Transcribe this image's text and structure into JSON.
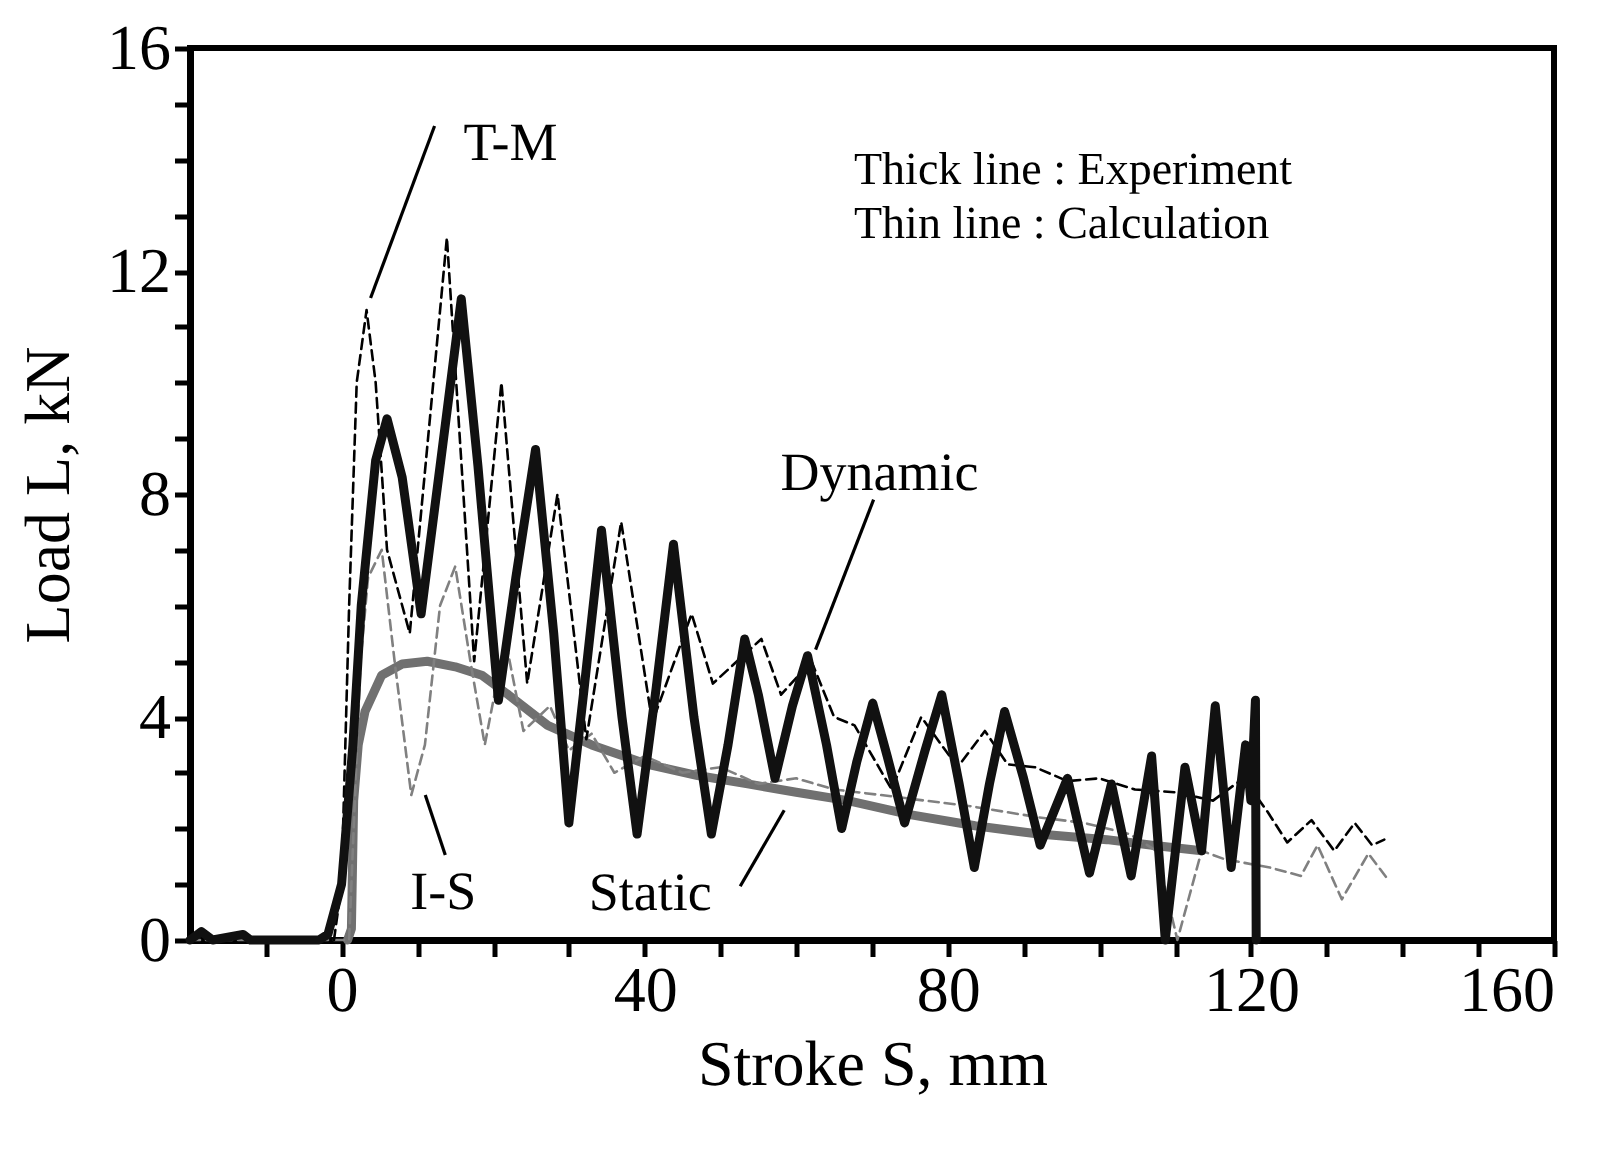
{
  "chart_data": {
    "type": "line",
    "xlabel": "Stroke S, mm",
    "ylabel": "Load L, kN",
    "xlim": [
      -20,
      160
    ],
    "ylim": [
      0,
      16
    ],
    "xticks": [
      {
        "value": -10,
        "label": null
      },
      0,
      {
        "value": 10,
        "label": null
      },
      {
        "value": 20,
        "label": null
      },
      {
        "value": 30,
        "label": null
      },
      40,
      {
        "value": 50,
        "label": null
      },
      {
        "value": 60,
        "label": null
      },
      {
        "value": 70,
        "label": null
      },
      80,
      {
        "value": 90,
        "label": null
      },
      {
        "value": 100,
        "label": null
      },
      {
        "value": 110,
        "label": null
      },
      120,
      {
        "value": 130,
        "label": null
      },
      {
        "value": 140,
        "label": null
      },
      {
        "value": 150,
        "label": null
      },
      160
    ],
    "yticks": [
      0,
      {
        "value": 1,
        "label": null
      },
      {
        "value": 2,
        "label": null
      },
      {
        "value": 3,
        "label": null
      },
      4,
      {
        "value": 5,
        "label": null
      },
      {
        "value": 6,
        "label": null
      },
      {
        "value": 7,
        "label": null
      },
      8,
      {
        "value": 9,
        "label": null
      },
      {
        "value": 10,
        "label": null
      },
      {
        "value": 11,
        "label": null
      },
      12,
      {
        "value": 13,
        "label": null
      },
      {
        "value": 14,
        "label": null
      },
      {
        "value": 15,
        "label": null
      },
      16
    ],
    "grid": false,
    "marker": "none",
    "series": [
      {
        "color": "#707070",
        "line_style": "solid",
        "x": [
          0.8,
          1.3,
          1.6,
          2.2,
          3.1,
          5.3,
          8,
          11.3,
          15,
          18.5,
          22,
          27.2,
          33,
          40.4,
          47,
          53.6,
          60,
          66.8,
          75,
          83.6,
          92,
          101,
          107,
          113.5
        ],
        "values": [
          0,
          0.2,
          2.5,
          3.5,
          4.1,
          4.75,
          4.95,
          5.0,
          4.9,
          4.75,
          4.4,
          3.85,
          3.5,
          3.15,
          2.95,
          2.8,
          2.65,
          2.5,
          2.25,
          2.05,
          1.9,
          1.8,
          1.7,
          1.6
        ]
      },
      {
        "color": "#808080",
        "line_style": "dashed",
        "x": [
          -20,
          1.0,
          1.3,
          2.5,
          3.5,
          5.3,
          7,
          9.2,
          11,
          13,
          15,
          17,
          18.9,
          21.6,
          24,
          27.5,
          30,
          33,
          36,
          40,
          45,
          50,
          55,
          60,
          65,
          71.2,
          77,
          83,
          92,
          98,
          104,
          107.5,
          110.3,
          113.5,
          116.5,
          122.5,
          126.6,
          128.8,
          132,
          135.5,
          138
        ],
        "values": [
          0,
          0,
          1,
          5,
          6.5,
          7.0,
          5,
          2.6,
          3.5,
          6,
          6.7,
          5,
          3.5,
          5.4,
          3.75,
          4.2,
          3.4,
          3.7,
          3.0,
          3.3,
          3.0,
          3.1,
          2.8,
          2.9,
          2.7,
          2.6,
          2.5,
          2.4,
          2.2,
          2.1,
          1.9,
          1.6,
          0,
          1.6,
          1.45,
          1.3,
          1.15,
          1.7,
          0.73,
          1.55,
          1.1
        ]
      },
      {
        "color": "#000000",
        "line_style": "dashed",
        "x": [
          -1,
          0,
          1,
          2,
          3.3,
          4.5,
          6,
          9,
          13.9,
          17.5,
          21.1,
          24.5,
          28.5,
          32.3,
          36.9,
          41,
          46.2,
          49,
          55.4,
          58,
          62,
          65,
          67.7,
          72.6,
          76.5,
          81.3,
          84.9,
          87.9,
          91.5,
          95.8,
          100,
          104.7,
          110,
          115,
          119,
          122.2,
          124.8,
          128,
          131,
          133.7,
          136,
          137.6
        ],
        "values": [
          0,
          1,
          6,
          10,
          11.3,
          10,
          7,
          5.5,
          12.6,
          5.0,
          10.0,
          4.6,
          8.0,
          3.6,
          7.5,
          3.9,
          5.85,
          4.6,
          5.4,
          4.4,
          5.0,
          4.0,
          3.85,
          2.7,
          4.0,
          3.1,
          3.75,
          3.15,
          3.1,
          2.85,
          2.9,
          2.7,
          2.65,
          2.5,
          2.9,
          2.3,
          1.75,
          2.15,
          1.6,
          2.1,
          1.7,
          1.8
        ]
      },
      {
        "color": "#111111",
        "line_style": "solid",
        "x": [
          -20,
          -18.5,
          -17,
          -13,
          -12,
          -3,
          -1.8,
          0,
          1.5,
          2.6,
          4.5,
          6,
          8,
          10.5,
          13,
          15.8,
          18,
          20.7,
          23,
          25.6,
          28,
          30,
          32,
          34.3,
          37,
          39,
          41.5,
          43.8,
          46.5,
          48.8,
          51,
          53.2,
          55,
          57.2,
          59.5,
          61.5,
          64,
          66,
          68,
          70.1,
          72,
          74.3,
          77,
          79.2,
          81.5,
          83.5,
          85.5,
          87.5,
          90,
          92.2,
          94,
          95.8,
          98.7,
          101.6,
          104.2,
          106.9,
          108.7,
          111.3,
          113.5,
          115.3,
          117.4,
          119.3,
          120,
          120.6,
          120.7
        ],
        "values": [
          0,
          0.15,
          0,
          0.1,
          0,
          0,
          0.1,
          1,
          3.5,
          6.0,
          8.6,
          9.35,
          8.3,
          5.85,
          8.5,
          11.5,
          8.5,
          4.3,
          6.5,
          8.8,
          5.5,
          2.1,
          4.5,
          7.35,
          4.0,
          1.9,
          4.5,
          7.1,
          4.0,
          1.9,
          3.5,
          5.4,
          4.4,
          2.9,
          4.2,
          5.1,
          3.5,
          2.0,
          3.2,
          4.25,
          3.3,
          2.1,
          3.4,
          4.4,
          2.8,
          1.3,
          2.8,
          4.1,
          2.9,
          1.7,
          2.3,
          2.9,
          1.2,
          2.8,
          1.15,
          3.3,
          0,
          3.1,
          1.6,
          4.2,
          1.3,
          3.5,
          2.5,
          4.3,
          0
        ]
      }
    ],
    "annotations": [
      {
        "text": "T-M",
        "x": 3.3,
        "y": 11.3
      },
      {
        "text": "I-S",
        "x": 9.2,
        "y": 2.6
      },
      {
        "text": "Static",
        "x": 60,
        "y": 2.65
      },
      {
        "text": "Dynamic",
        "x": 61.5,
        "y": 5.1
      },
      "Thick line : Experiment",
      "Thin line : Calculation"
    ]
  }
}
